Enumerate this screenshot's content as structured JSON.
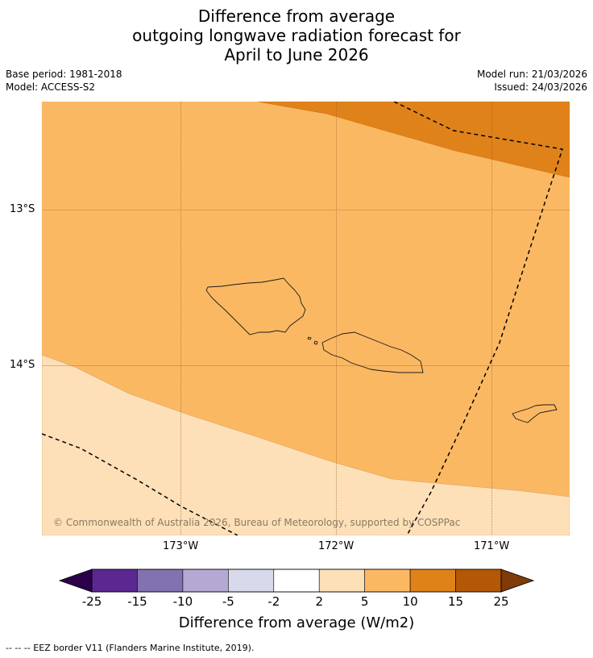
{
  "title": {
    "line1": "Difference from average",
    "line2": "outgoing longwave radiation forecast for",
    "line3": "April to June 2026"
  },
  "meta": {
    "base_period": "Base period: 1981-2018",
    "model": "Model: ACCESS-S2",
    "model_run": "Model run: 21/03/2026",
    "issued": "Issued: 24/03/2026"
  },
  "map": {
    "lon_labels": [
      "173°W",
      "172°W",
      "171°W"
    ],
    "lat_labels": [
      "13°S",
      "14°S"
    ],
    "copyright": "© Commonwealth of Australia 2026, Bureau of Meteorology, supported by COSPPac"
  },
  "colorbar": {
    "labels": [
      "-25",
      "-15",
      "-10",
      "-5",
      "-2",
      "2",
      "5",
      "10",
      "15",
      "25"
    ],
    "colors": [
      "#5a2890",
      "#8272b0",
      "#b3a9d3",
      "#d9d9ec",
      "#ffffff",
      "#fde0b8",
      "#fbb862",
      "#e0821a",
      "#b35806"
    ],
    "low_extend_color": "#2d004b",
    "high_extend_color": "#7f3b08",
    "title": "Difference from average (W/m2)"
  },
  "footnote": "--  --  -- EEZ border V11 (Flanders Marine Institute, 2019)."
}
